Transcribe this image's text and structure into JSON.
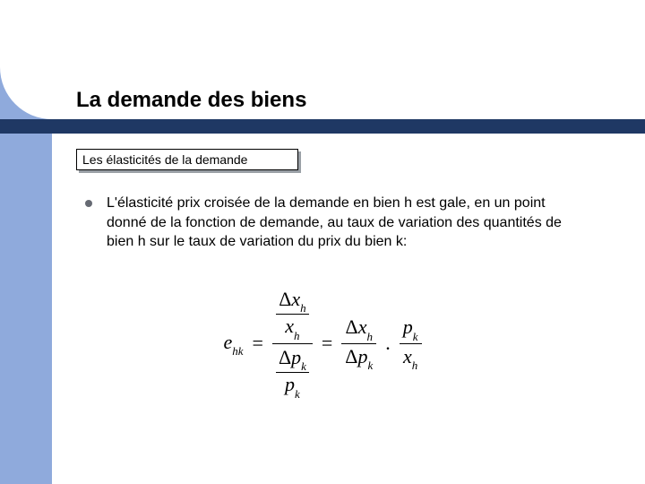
{
  "title": "La demande des biens",
  "subtitle": "Les élasticités de la demande",
  "bullet": "L'élasticité prix croisée de la demande en bien h est gale, en un point donné de la fonction de demande, au taux de variation des quantités de bien h sur le taux de variation du prix du bien k:",
  "equation": {
    "lhs_var": "e",
    "lhs_sub": "hk",
    "eq": "=",
    "delta": "Δ",
    "x": "x",
    "p": "p",
    "h": "h",
    "k": "k",
    "dot": "."
  },
  "colors": {
    "left_bar": "#8faadc",
    "divider": "#1f3864",
    "bullet_dot": "#666a73",
    "shadow": "#9aa0a6",
    "text": "#000000",
    "bg": "#ffffff"
  }
}
